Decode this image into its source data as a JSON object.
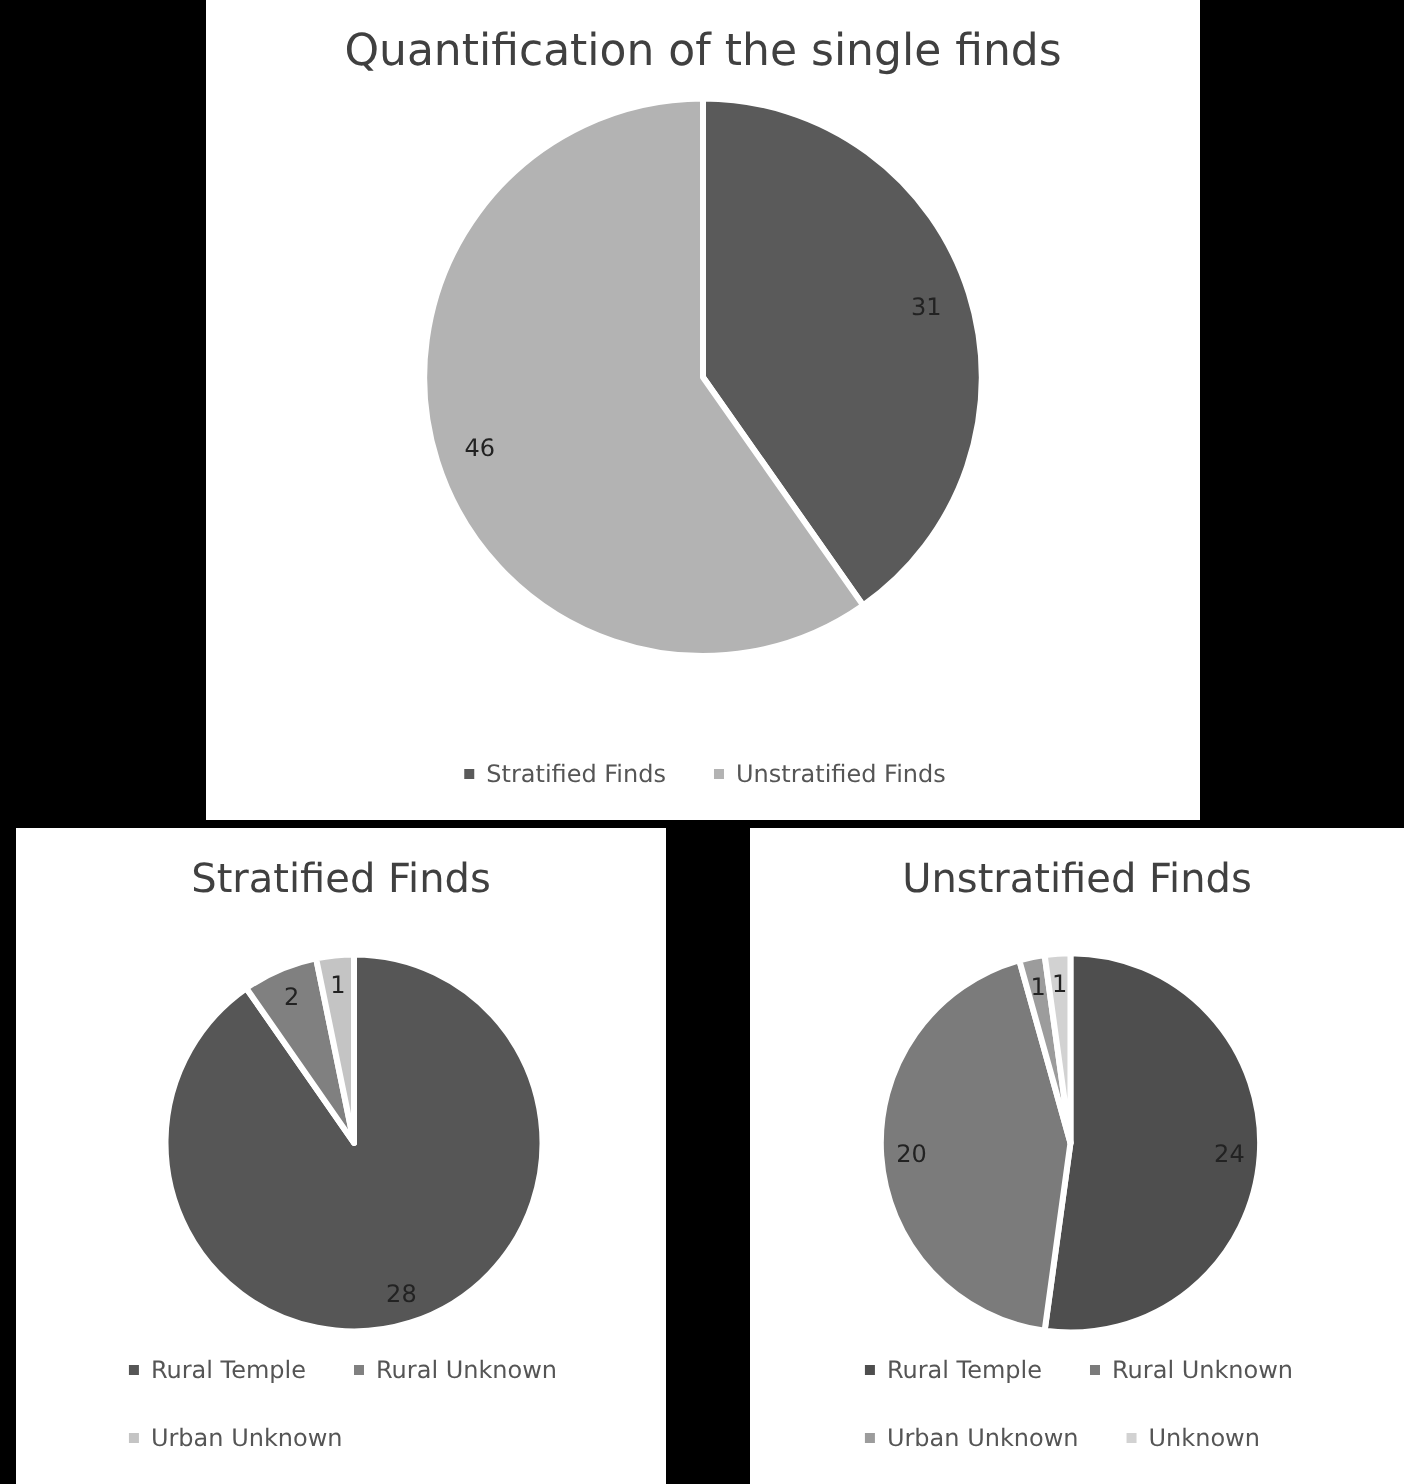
{
  "chart_data": [
    {
      "type": "pie",
      "title": "Quantification of the single finds",
      "categories": [
        "Stratified Finds",
        "Unstratified Finds"
      ],
      "values": [
        31,
        46
      ],
      "colors": [
        "#5a5a5a",
        "#b3b3b3"
      ],
      "data_labels": true,
      "legend": "bottom"
    },
    {
      "type": "pie",
      "title": "Stratified Finds",
      "categories": [
        "Rural Temple",
        "Rural Unknown",
        "Urban Unknown"
      ],
      "values": [
        28,
        2,
        1
      ],
      "colors": [
        "#565656",
        "#808080",
        "#c4c4c4"
      ],
      "data_labels": true,
      "legend": "bottom"
    },
    {
      "type": "pie",
      "title": "Unstratified Finds",
      "categories": [
        "Rural Temple",
        "Rural Unknown",
        "Urban Unknown",
        "Unknown"
      ],
      "values": [
        24,
        20,
        1,
        1
      ],
      "colors": [
        "#4e4e4e",
        "#7b7b7b",
        "#9c9c9c",
        "#d2d2d2"
      ],
      "data_labels": true,
      "legend": "bottom"
    }
  ]
}
